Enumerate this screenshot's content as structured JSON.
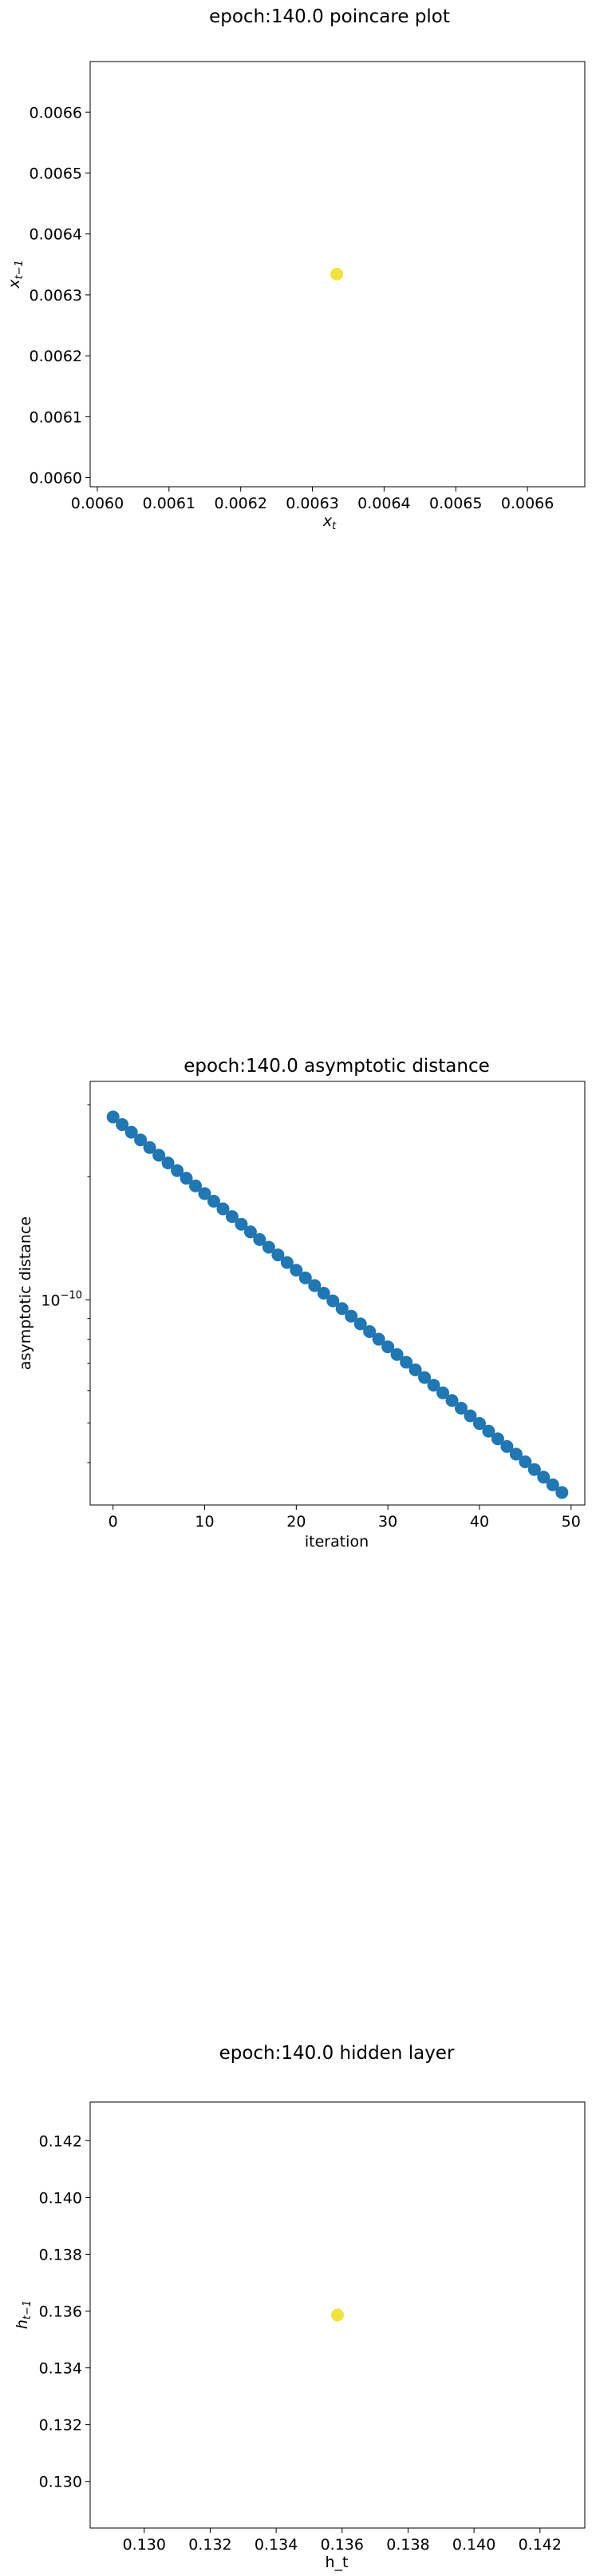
{
  "colors": {
    "yellow_marker": "#f2e33b",
    "blue_marker": "#1f77b4",
    "axes": "#000000"
  },
  "chart_data": [
    {
      "type": "scatter",
      "title": "epoch:140.0 poincare plot",
      "xlabel": "x_t",
      "ylabel": "x_{t-1}",
      "xlim": [
        0.00599,
        0.00668
      ],
      "ylim": [
        0.005985,
        0.006683
      ],
      "xticks": [
        "0.0060",
        "0.0061",
        "0.0062",
        "0.0063",
        "0.0064",
        "0.0065",
        "0.0066"
      ],
      "xtick_values": [
        0.006,
        0.0061,
        0.0062,
        0.0063,
        0.0064,
        0.0065,
        0.0066
      ],
      "yticks": [
        "0.0060",
        "0.0061",
        "0.0062",
        "0.0063",
        "0.0064",
        "0.0065",
        "0.0066"
      ],
      "ytick_values": [
        0.006,
        0.0061,
        0.0062,
        0.0063,
        0.0064,
        0.0065,
        0.0066
      ],
      "points": [
        {
          "x": 0.006334,
          "y": 0.006334
        }
      ],
      "color": "#f2e33b",
      "grid": false
    },
    {
      "type": "scatter",
      "title": "epoch:140.0 asymptotic distance",
      "xlabel": "iteration",
      "ylabel": "asymptotic distance",
      "yscale": "log",
      "xlim": [
        -2.5,
        51.5
      ],
      "ylim": [
        3.15e-11,
        3.42e-10
      ],
      "xticks": [
        "0",
        "10",
        "20",
        "30",
        "40",
        "50"
      ],
      "xtick_values": [
        0,
        10,
        20,
        30,
        40,
        50
      ],
      "yticks": [
        "10^{-10}"
      ],
      "ytick_values": [
        1e-10
      ],
      "minor_ytick_values": [
        4e-11,
        5e-11,
        6e-11,
        7e-11,
        8e-11,
        9e-11,
        2e-10,
        3e-10
      ],
      "series": [
        {
          "x_start": 0,
          "x_end": 49,
          "count": 50,
          "y_start": 2.8e-10,
          "y_end": 3.38e-11
        }
      ],
      "color": "#1f77b4",
      "grid": false
    },
    {
      "type": "scatter",
      "title": "epoch:140.0 hidden layer",
      "xlabel": "h_t",
      "ylabel": "h_{t-1}",
      "xlim": [
        0.12836,
        0.14336
      ],
      "ylim": [
        0.12836,
        0.14336
      ],
      "xticks": [
        "0.130",
        "0.132",
        "0.134",
        "0.136",
        "0.138",
        "0.140",
        "0.142"
      ],
      "xtick_values": [
        0.13,
        0.132,
        0.134,
        0.136,
        0.138,
        0.14,
        0.142
      ],
      "yticks": [
        "0.130",
        "0.132",
        "0.134",
        "0.136",
        "0.138",
        "0.140",
        "0.142"
      ],
      "ytick_values": [
        0.13,
        0.132,
        0.134,
        0.136,
        0.138,
        0.14,
        0.142
      ],
      "points": [
        {
          "x": 0.13586,
          "y": 0.13586
        }
      ],
      "color": "#f2e33b",
      "grid": false
    }
  ]
}
